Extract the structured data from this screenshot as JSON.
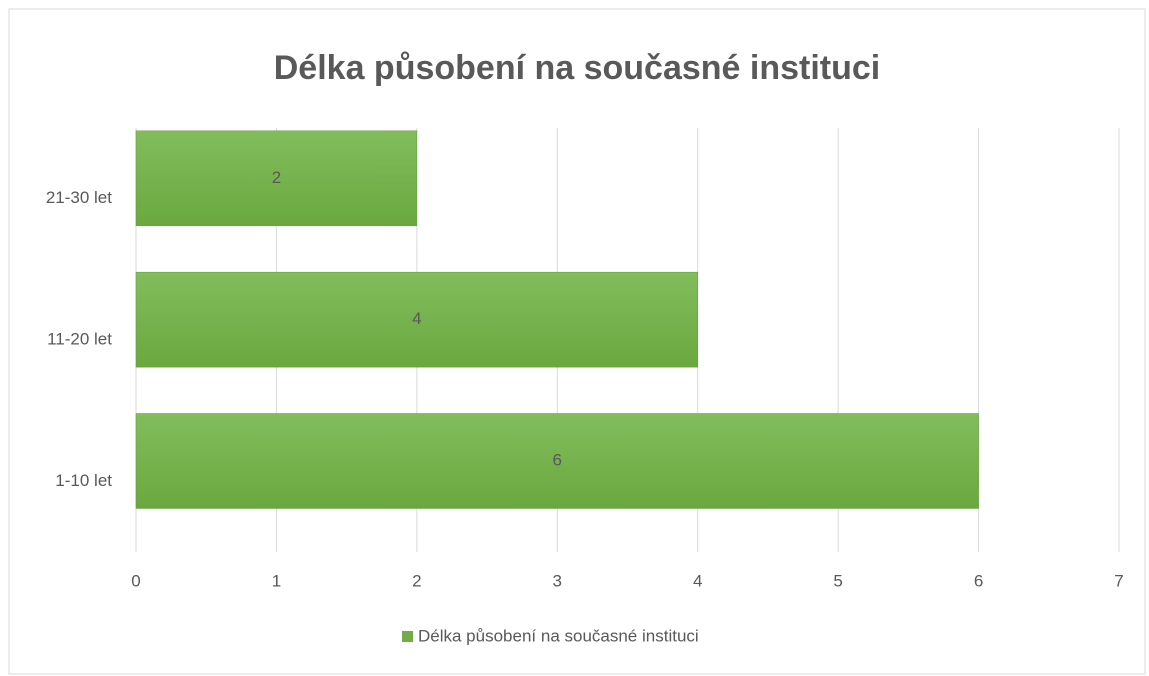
{
  "chart_data": {
    "type": "bar",
    "orientation": "horizontal",
    "title": "Délka působení na současné instituci",
    "categories": [
      "1-10 let",
      "11-20 let",
      "21-30 let"
    ],
    "series": [
      {
        "name": "Délka působení na současné instituci",
        "color": "#70ad47",
        "values": [
          6,
          4,
          2
        ]
      }
    ],
    "xlim": [
      0,
      7
    ],
    "xticks": [
      0,
      1,
      2,
      3,
      4,
      5,
      6,
      7
    ],
    "grid": true,
    "legend": "bottom"
  }
}
